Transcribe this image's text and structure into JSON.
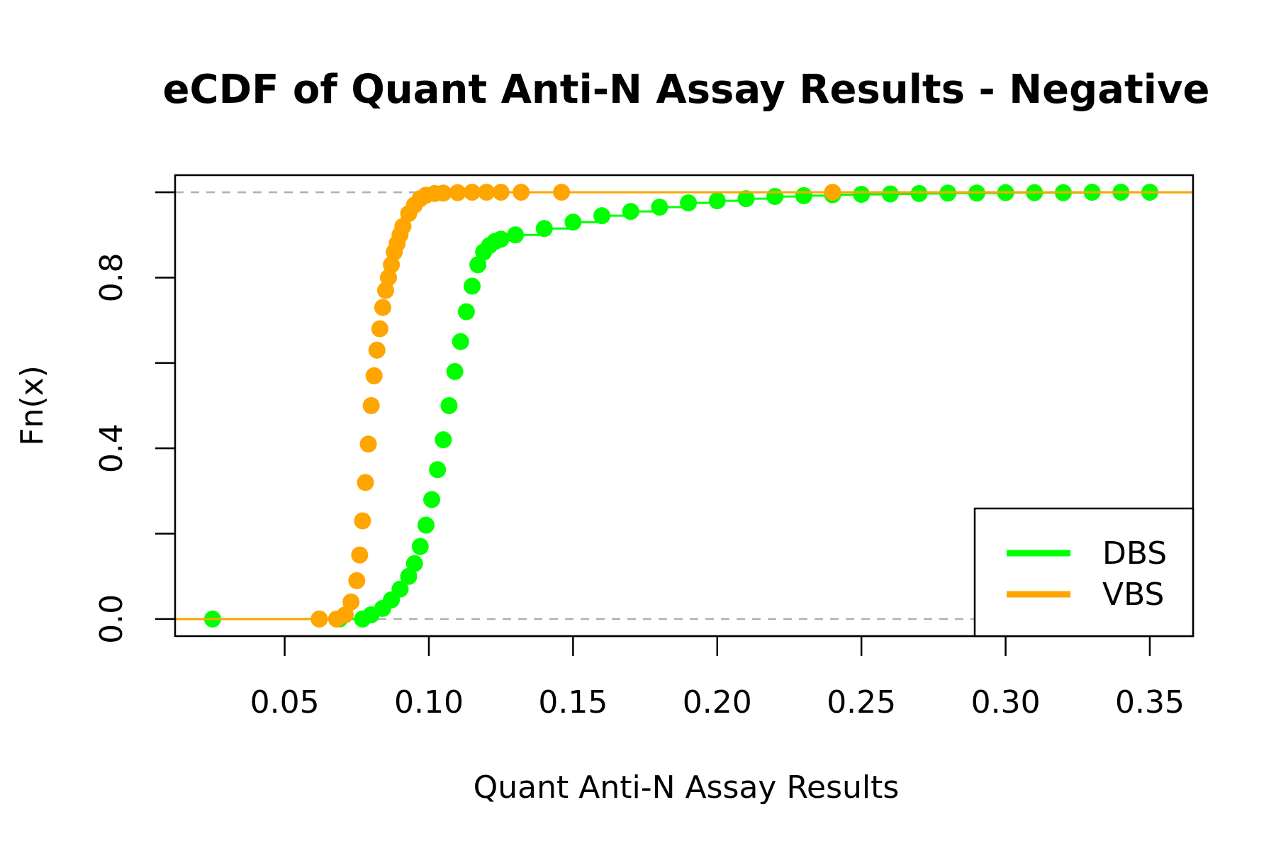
{
  "chart_data": {
    "type": "scatter",
    "title": "eCDF of Quant Anti-N Assay Results - Negative",
    "xlabel": "Quant Anti-N Assay Results",
    "ylabel": "Fn(x)",
    "xlim": [
      0.012,
      0.365
    ],
    "ylim": [
      -0.04,
      1.04
    ],
    "x_ticks": [
      0.05,
      0.1,
      0.15,
      0.2,
      0.25,
      0.3,
      0.35
    ],
    "x_tick_labels": [
      "0.05",
      "0.10",
      "0.15",
      "0.20",
      "0.25",
      "0.30",
      "0.35"
    ],
    "y_ticks": [
      0.0,
      0.2,
      0.4,
      0.6,
      0.8,
      1.0
    ],
    "y_tick_labels": [
      "0.0",
      "",
      "0.4",
      "",
      "0.8",
      ""
    ],
    "reference_lines_y": [
      0,
      1
    ],
    "legend": {
      "placement": "bottom-right",
      "entries": [
        "DBS",
        "VBS"
      ]
    },
    "colors": {
      "DBS": "#00ff00",
      "VBS": "#ffa500",
      "reference": "#b0b0b0"
    },
    "series": [
      {
        "name": "DBS",
        "color": "#00ff00",
        "x": [
          0.025,
          0.062,
          0.069,
          0.077,
          0.08,
          0.084,
          0.087,
          0.09,
          0.093,
          0.095,
          0.097,
          0.099,
          0.101,
          0.103,
          0.105,
          0.107,
          0.109,
          0.111,
          0.113,
          0.115,
          0.117,
          0.119,
          0.121,
          0.123,
          0.125,
          0.13,
          0.14,
          0.15,
          0.16,
          0.17,
          0.18,
          0.19,
          0.2,
          0.21,
          0.22,
          0.23,
          0.24,
          0.25,
          0.26,
          0.27,
          0.28,
          0.29,
          0.3,
          0.31,
          0.32,
          0.33,
          0.34,
          0.35
        ],
        "y": [
          0.0,
          0.0,
          0.0,
          0.0,
          0.01,
          0.025,
          0.045,
          0.07,
          0.1,
          0.13,
          0.17,
          0.22,
          0.28,
          0.35,
          0.42,
          0.5,
          0.58,
          0.65,
          0.72,
          0.78,
          0.83,
          0.86,
          0.875,
          0.885,
          0.89,
          0.9,
          0.915,
          0.93,
          0.945,
          0.955,
          0.965,
          0.975,
          0.98,
          0.985,
          0.99,
          0.992,
          0.994,
          0.995,
          0.996,
          0.997,
          0.998,
          0.998,
          0.999,
          0.999,
          0.999,
          1.0,
          1.0,
          1.0
        ]
      },
      {
        "name": "VBS",
        "color": "#ffa500",
        "x": [
          0.062,
          0.068,
          0.071,
          0.073,
          0.075,
          0.076,
          0.077,
          0.078,
          0.079,
          0.08,
          0.081,
          0.082,
          0.083,
          0.084,
          0.085,
          0.086,
          0.087,
          0.088,
          0.089,
          0.09,
          0.091,
          0.093,
          0.095,
          0.097,
          0.099,
          0.102,
          0.105,
          0.11,
          0.115,
          0.12,
          0.125,
          0.132,
          0.146,
          0.24
        ],
        "y": [
          0.0,
          0.0,
          0.01,
          0.04,
          0.09,
          0.15,
          0.23,
          0.32,
          0.41,
          0.5,
          0.57,
          0.63,
          0.68,
          0.73,
          0.77,
          0.8,
          0.83,
          0.86,
          0.88,
          0.9,
          0.92,
          0.95,
          0.97,
          0.985,
          0.993,
          0.997,
          0.998,
          0.999,
          1.0,
          1.0,
          1.0,
          1.0,
          1.0,
          1.0
        ]
      }
    ]
  }
}
